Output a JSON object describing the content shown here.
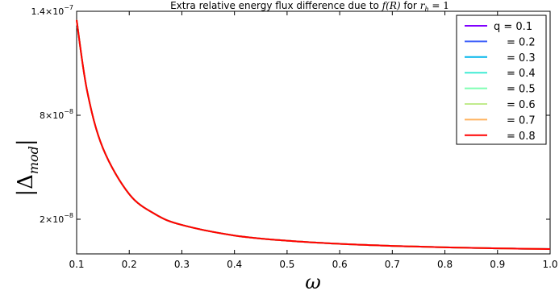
{
  "chart_data": {
    "type": "line",
    "title": {
      "prefix": "Extra relative energy flux difference due to ",
      "fR": "f(R)",
      "mid": " for ",
      "rh_var": "r",
      "rh_sub": "h",
      "rh_val": " = 1"
    },
    "xlabel": "ω",
    "ylabel": {
      "main": "|Δ",
      "sub": "mod",
      "close": "|"
    },
    "xlim": [
      0.1,
      1.0
    ],
    "ylim": [
      0.0,
      1.4e-07
    ],
    "xticks": [
      0.1,
      0.2,
      0.3,
      0.4,
      0.5,
      0.6,
      0.7,
      0.8,
      0.9,
      1.0
    ],
    "xtick_labels": [
      "0.1",
      "0.2",
      "0.3",
      "0.4",
      "0.5",
      "0.6",
      "0.7",
      "0.8",
      "0.9",
      "1.0"
    ],
    "yticks": [
      {
        "value": 2e-08,
        "mantissa": "2",
        "exp": "−8"
      },
      {
        "value": 8e-08,
        "mantissa": "8",
        "exp": "−8"
      },
      {
        "value": 1.4e-07,
        "mantissa": "1.4",
        "exp": "−7"
      }
    ],
    "tick_base": "×10",
    "grid": false,
    "legend_position": "top-right",
    "x": [
      0.1,
      0.12,
      0.15,
      0.2,
      0.25,
      0.3,
      0.4,
      0.5,
      0.6,
      0.7,
      0.8,
      0.9,
      1.0
    ],
    "series": [
      {
        "name": "q = 0.1",
        "color": "#8000ff",
        "values": [
          1.35e-07,
          9.4e-08,
          6.1e-08,
          3.45e-08,
          2.28e-08,
          1.67e-08,
          1.06e-08,
          7.6e-09,
          5.8e-09,
          4.6e-09,
          3.8e-09,
          3.2e-09,
          2.8e-09
        ]
      },
      {
        "name": "= 0.2",
        "color": "#4062fa",
        "values": [
          1.35e-07,
          9.4e-08,
          6.1e-08,
          3.45e-08,
          2.28e-08,
          1.67e-08,
          1.06e-08,
          7.6e-09,
          5.8e-09,
          4.6e-09,
          3.8e-09,
          3.2e-09,
          2.8e-09
        ]
      },
      {
        "name": "= 0.3",
        "color": "#00b5eb",
        "values": [
          1.35e-07,
          9.4e-08,
          6.1e-08,
          3.45e-08,
          2.28e-08,
          1.67e-08,
          1.06e-08,
          7.6e-09,
          5.8e-09,
          4.6e-09,
          3.8e-09,
          3.2e-09,
          2.8e-09
        ]
      },
      {
        "name": "= 0.4",
        "color": "#40ecd4",
        "values": [
          1.35e-07,
          9.4e-08,
          6.1e-08,
          3.45e-08,
          2.28e-08,
          1.67e-08,
          1.06e-08,
          7.6e-09,
          5.8e-09,
          4.6e-09,
          3.8e-09,
          3.2e-09,
          2.8e-09
        ]
      },
      {
        "name": "= 0.5",
        "color": "#80ffb4",
        "values": [
          1.35e-07,
          9.4e-08,
          6.1e-08,
          3.45e-08,
          2.28e-08,
          1.67e-08,
          1.06e-08,
          7.6e-09,
          5.8e-09,
          4.6e-09,
          3.8e-09,
          3.2e-09,
          2.8e-09
        ]
      },
      {
        "name": "= 0.6",
        "color": "#c0eb8d",
        "values": [
          1.35e-07,
          9.4e-08,
          6.1e-08,
          3.45e-08,
          2.28e-08,
          1.67e-08,
          1.06e-08,
          7.6e-09,
          5.8e-09,
          4.6e-09,
          3.8e-09,
          3.2e-09,
          2.8e-09
        ]
      },
      {
        "name": "= 0.7",
        "color": "#ffb360",
        "values": [
          1.35e-07,
          9.4e-08,
          6.1e-08,
          3.45e-08,
          2.28e-08,
          1.67e-08,
          1.06e-08,
          7.6e-09,
          5.8e-09,
          4.6e-09,
          3.8e-09,
          3.2e-09,
          2.8e-09
        ]
      },
      {
        "name": "= 0.8",
        "color": "#ff4e27",
        "values": [
          1.35e-07,
          9.4e-08,
          6.1e-08,
          3.45e-08,
          2.28e-08,
          1.67e-08,
          1.06e-08,
          7.6e-09,
          5.8e-09,
          4.6e-09,
          3.8e-09,
          3.2e-09,
          2.8e-09
        ]
      }
    ],
    "top_series_color": "#ff0000"
  }
}
